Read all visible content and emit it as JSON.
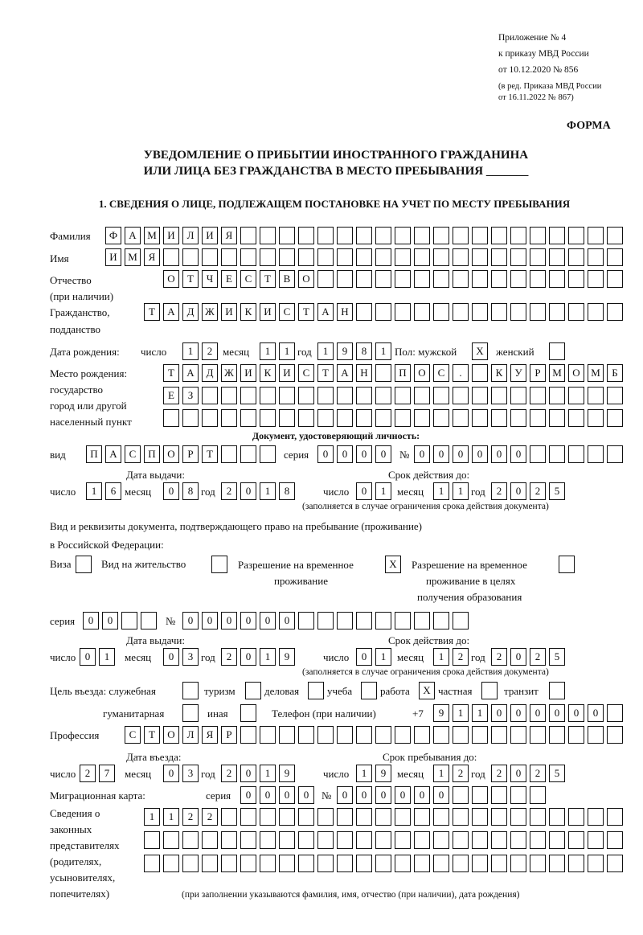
{
  "header": {
    "appendix": [
      "Приложение № 4",
      "к приказу МВД России",
      "от 10.12.2020 № 856"
    ],
    "revision": [
      "(в ред. Приказа МВД России",
      "от 16.11.2022 № 867)"
    ],
    "form_label": "ФОРМА",
    "title": [
      "УВЕДОМЛЕНИЕ О ПРИБЫТИИ ИНОСТРАННОГО ГРАЖДАНИНА",
      "ИЛИ ЛИЦА БЕЗ ГРАЖДАНСТВА В МЕСТО ПРЕБЫВАНИЯ _______"
    ],
    "section1": "1. СВЕДЕНИЯ О ЛИЦЕ, ПОДЛЕЖАЩЕМ ПОСТАНОВКЕ НА УЧЕТ ПО МЕСТУ ПРЕБЫВАНИЯ"
  },
  "labels": {
    "surname": "Фамилия",
    "name": "Имя",
    "patronymic": "Отчество",
    "patronymic_note": "(при наличии)",
    "citizenship": [
      "Гражданство,",
      "подданство"
    ],
    "birth_date": "Дата рождения:",
    "day": "число",
    "month": "месяц",
    "year": "год",
    "sex": "Пол: мужской",
    "female": "женский",
    "birth_place": [
      "Место рождения:",
      "государство",
      "город или другой",
      "населенный пункт"
    ],
    "id_doc": "Документ, удостоверяющий личность:",
    "kind": "вид",
    "series": "серия",
    "number": "№",
    "issue_date": "Дата выдачи:",
    "valid_until": "Срок действия до:",
    "validity_note": "(заполняется в случае ограничения срока действия документа)",
    "stay_doc": [
      "Вид и реквизиты документа, подтверждающего право на пребывание (проживание)",
      "в Российской Федерации:"
    ],
    "visa": "Виза",
    "residence": "Вид на жительство",
    "temp_permit": [
      "Разрешение на временное",
      "проживание"
    ],
    "temp_permit_edu": [
      "Разрешение на временное",
      "проживание в целях",
      "получения образования"
    ],
    "purpose": "Цель въезда: служебная",
    "tourism": "туризм",
    "business": "деловая",
    "study": "учеба",
    "work": "работа",
    "private": "частная",
    "transit": "транзит",
    "humanitarian": "гуманитарная",
    "other": "иная",
    "phone": "Телефон (при наличии)",
    "phone_prefix": "+7",
    "profession": "Профессия",
    "entry_date": "Дата въезда:",
    "stay_until": "Срок пребывания до:",
    "migration_card": "Миграционная карта:",
    "representatives": [
      "Сведения о",
      "законных",
      "представителях",
      "(родителях,",
      "усыновителях,",
      "попечителях)"
    ],
    "representatives_note": "(при заполнении указываются фамилия, имя, отчество (при наличии), дата рождения)"
  },
  "values": {
    "surname": "ФАМИЛИЯ",
    "name": "ИМЯ",
    "patronymic": "ОТЧЕСТВО",
    "citizenship": "ТАДЖИКИСТАН",
    "birth_day": "12",
    "birth_month": "11",
    "birth_year": "1981",
    "male": "X",
    "female": "",
    "birth_place1": "ТАДЖИКИСТАН ПОС. КУРМОМБ",
    "birth_place2": "ЕЗ",
    "birth_place3": "",
    "doc_kind": "ПАСПОРТ",
    "doc_series": "0000",
    "doc_number": "000000",
    "doc_issue_day": "16",
    "doc_issue_month": "08",
    "doc_issue_year": "2018",
    "doc_valid_day": "01",
    "doc_valid_month": "11",
    "doc_valid_year": "2025",
    "visa": "",
    "residence": "",
    "temp_permit": "X",
    "temp_permit_edu": "",
    "stay_series": "00",
    "stay_number": "000000",
    "stay_issue_day": "01",
    "stay_issue_month": "03",
    "stay_issue_year": "2019",
    "stay_valid_day": "01",
    "stay_valid_month": "12",
    "stay_valid_year": "2025",
    "purpose_service": "",
    "purpose_tourism": "",
    "purpose_business": "",
    "purpose_study": "",
    "purpose_work": "X",
    "purpose_private": "",
    "purpose_transit": "",
    "purpose_humanitarian": "",
    "purpose_other": "",
    "phone": "911000000",
    "profession": "СТОЛЯР",
    "entry_day": "27",
    "entry_month": "03",
    "entry_year": "2019",
    "stay_until_day": "19",
    "stay_until_month": "12",
    "stay_until_year": "2025",
    "mc_series": "0000",
    "mc_number": "000000",
    "rep1": "1122",
    "rep2": "",
    "rep3": ""
  }
}
